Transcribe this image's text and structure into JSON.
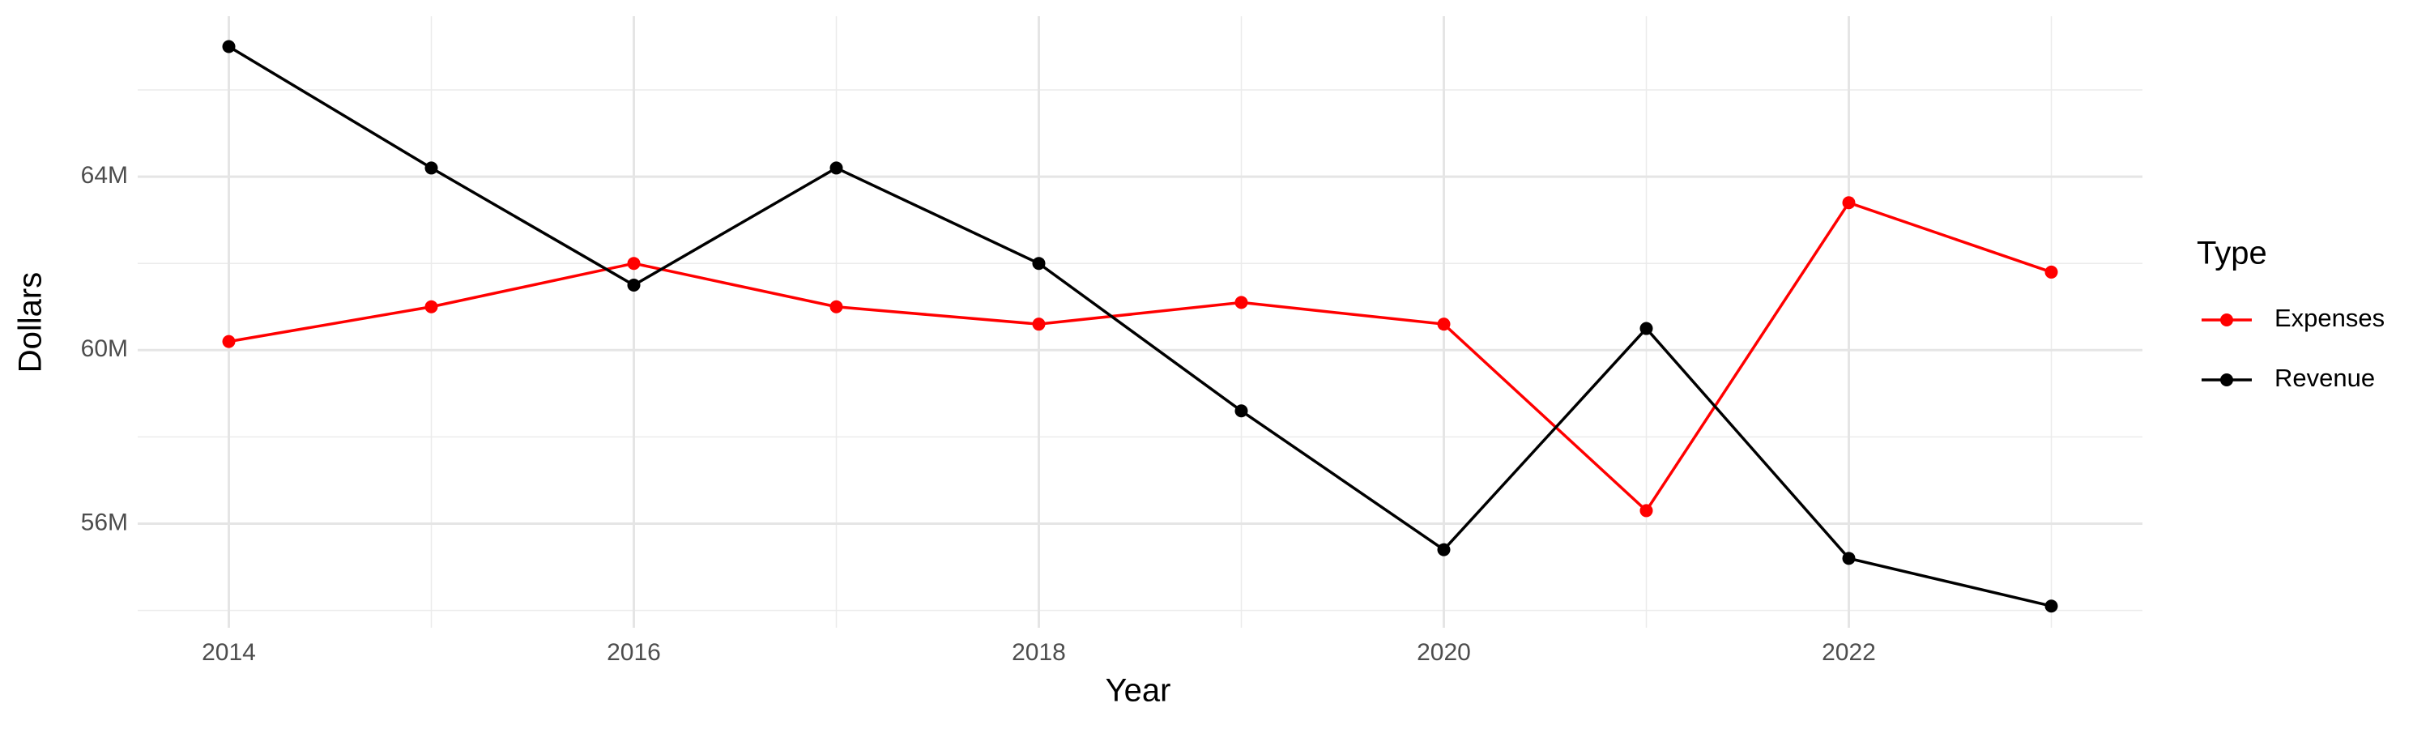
{
  "chart_data": {
    "type": "line",
    "x_label": "Year",
    "y_label": "Dollars",
    "legend_title": "Type",
    "legend": "right",
    "grid": true,
    "x": [
      2014,
      2015,
      2016,
      2017,
      2018,
      2019,
      2020,
      2021,
      2022,
      2023
    ],
    "series": [
      {
        "name": "Expenses",
        "color": "#ff0000",
        "values": [
          60200000,
          61000000,
          62000000,
          61000000,
          60600000,
          61100000,
          60600000,
          56300000,
          63400000,
          61800000
        ]
      },
      {
        "name": "Revenue",
        "color": "#000000",
        "values": [
          67000000,
          64200000,
          61500000,
          64200000,
          62000000,
          58600000,
          55400000,
          60500000,
          55200000,
          54100000
        ]
      }
    ],
    "xlim": [
      2013.55,
      2023.45
    ],
    "xticks": [
      2014,
      2016,
      2018,
      2020,
      2022
    ],
    "ylim": [
      53600000,
      67700000
    ],
    "yticks": [
      {
        "value": 56000000,
        "label": "56M"
      },
      {
        "value": 60000000,
        "label": "60M"
      },
      {
        "value": 64000000,
        "label": "64M"
      }
    ]
  }
}
